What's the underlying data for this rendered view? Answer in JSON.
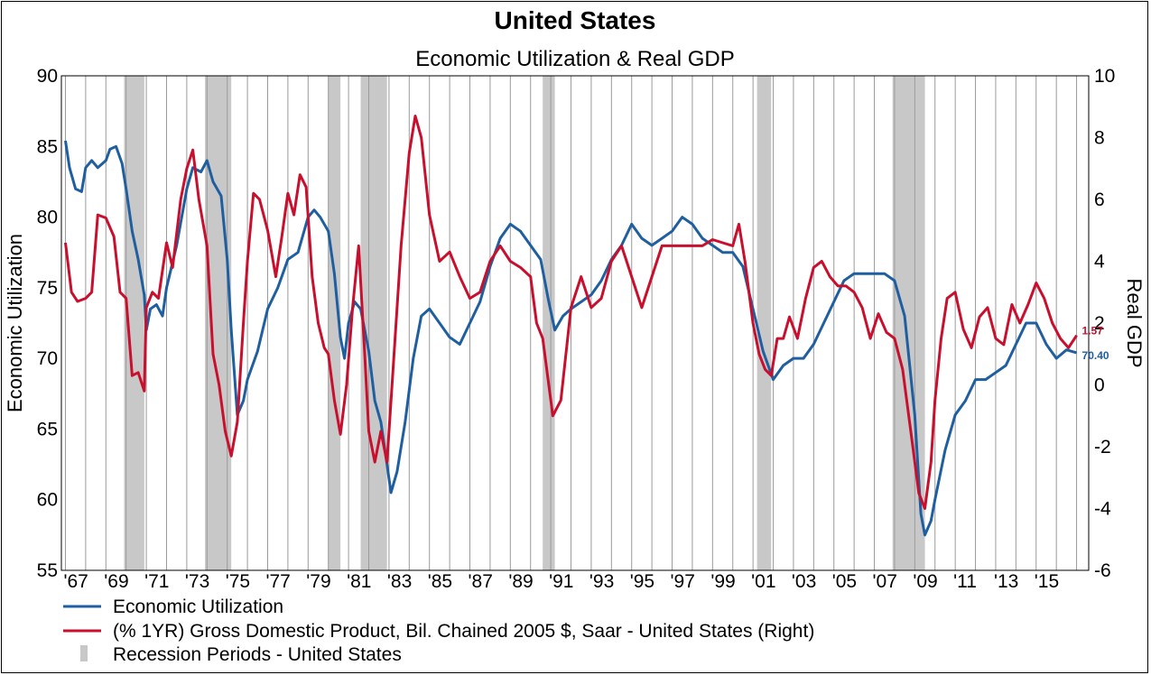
{
  "chart_data": {
    "type": "line",
    "title": "United States",
    "subtitle": "Economic Utilization & Real GDP",
    "ylabel": "Economic Utilization",
    "ylabel_right": "Real GDP",
    "ylim": [
      55,
      90
    ],
    "ylim_right": [
      -6,
      10
    ],
    "xlim": [
      1966.8,
      2017.6
    ],
    "yticks": [
      "90",
      "85",
      "80",
      "75",
      "70",
      "65",
      "60",
      "55"
    ],
    "yticks_right": [
      "10",
      "8",
      "6",
      "4",
      "2",
      "0",
      "-2",
      "-4",
      "-6"
    ],
    "xticks": [
      "'67",
      "'69",
      "'71",
      "'73",
      "'75",
      "'77",
      "'79",
      "'81",
      "'83",
      "'85",
      "'87",
      "'89",
      "'91",
      "'93",
      "'95",
      "'97",
      "'99",
      "'01",
      "'03",
      "'05",
      "'07",
      "'09",
      "'11",
      "'13",
      "'15"
    ],
    "grid": "vertical",
    "legend_position": "bottom",
    "recessions": [
      [
        1969.9,
        1970.9
      ],
      [
        1973.9,
        1975.2
      ],
      [
        1980.0,
        1980.6
      ],
      [
        1981.6,
        1982.9
      ],
      [
        1990.6,
        1991.2
      ],
      [
        2001.2,
        2001.9
      ],
      [
        2007.9,
        2009.5
      ]
    ],
    "series": [
      {
        "name": "Economic Utilization",
        "color": "#1f5fa0",
        "axis": "left",
        "end_label": "70.40",
        "points": [
          [
            1967.0,
            85.4
          ],
          [
            1967.2,
            83.5
          ],
          [
            1967.5,
            82.0
          ],
          [
            1967.8,
            81.8
          ],
          [
            1968.0,
            83.5
          ],
          [
            1968.3,
            84.0
          ],
          [
            1968.6,
            83.5
          ],
          [
            1969.0,
            84.0
          ],
          [
            1969.2,
            84.8
          ],
          [
            1969.5,
            85.0
          ],
          [
            1969.8,
            83.8
          ],
          [
            1970.0,
            82.0
          ],
          [
            1970.3,
            79.0
          ],
          [
            1970.6,
            77.0
          ],
          [
            1970.9,
            74.5
          ],
          [
            1971.0,
            72.0
          ],
          [
            1971.2,
            73.5
          ],
          [
            1971.5,
            73.8
          ],
          [
            1971.8,
            73.0
          ],
          [
            1972.0,
            75.0
          ],
          [
            1972.5,
            78.0
          ],
          [
            1973.0,
            82.0
          ],
          [
            1973.3,
            83.5
          ],
          [
            1973.7,
            83.2
          ],
          [
            1974.0,
            84.0
          ],
          [
            1974.3,
            82.5
          ],
          [
            1974.7,
            81.5
          ],
          [
            1975.0,
            77.0
          ],
          [
            1975.2,
            72.0
          ],
          [
            1975.5,
            66.0
          ],
          [
            1975.8,
            67.0
          ],
          [
            1976.0,
            68.5
          ],
          [
            1976.5,
            70.5
          ],
          [
            1977.0,
            73.5
          ],
          [
            1977.5,
            75.0
          ],
          [
            1978.0,
            77.0
          ],
          [
            1978.5,
            77.5
          ],
          [
            1979.0,
            80.0
          ],
          [
            1979.3,
            80.5
          ],
          [
            1979.6,
            80.0
          ],
          [
            1980.0,
            79.0
          ],
          [
            1980.3,
            76.0
          ],
          [
            1980.6,
            71.5
          ],
          [
            1980.8,
            70.0
          ],
          [
            1981.0,
            72.5
          ],
          [
            1981.3,
            74.0
          ],
          [
            1981.6,
            73.5
          ],
          [
            1982.0,
            70.5
          ],
          [
            1982.3,
            67.0
          ],
          [
            1982.6,
            65.5
          ],
          [
            1982.9,
            62.5
          ],
          [
            1983.1,
            60.5
          ],
          [
            1983.4,
            62.0
          ],
          [
            1983.8,
            65.5
          ],
          [
            1984.2,
            70.0
          ],
          [
            1984.6,
            73.0
          ],
          [
            1985.0,
            73.5
          ],
          [
            1985.5,
            72.5
          ],
          [
            1986.0,
            71.5
          ],
          [
            1986.5,
            71.0
          ],
          [
            1987.0,
            72.5
          ],
          [
            1987.5,
            74.0
          ],
          [
            1988.0,
            76.5
          ],
          [
            1988.5,
            78.5
          ],
          [
            1989.0,
            79.5
          ],
          [
            1989.5,
            79.0
          ],
          [
            1990.0,
            78.0
          ],
          [
            1990.5,
            77.0
          ],
          [
            1990.9,
            74.0
          ],
          [
            1991.2,
            72.0
          ],
          [
            1991.6,
            73.0
          ],
          [
            1992.0,
            73.5
          ],
          [
            1992.5,
            74.0
          ],
          [
            1993.0,
            74.5
          ],
          [
            1993.5,
            75.5
          ],
          [
            1994.0,
            77.0
          ],
          [
            1994.5,
            78.0
          ],
          [
            1995.0,
            79.5
          ],
          [
            1995.5,
            78.5
          ],
          [
            1996.0,
            78.0
          ],
          [
            1996.5,
            78.5
          ],
          [
            1997.0,
            79.0
          ],
          [
            1997.5,
            80.0
          ],
          [
            1998.0,
            79.5
          ],
          [
            1998.5,
            78.5
          ],
          [
            1999.0,
            78.0
          ],
          [
            1999.5,
            77.5
          ],
          [
            2000.0,
            77.5
          ],
          [
            2000.5,
            76.5
          ],
          [
            2001.0,
            73.5
          ],
          [
            2001.5,
            70.5
          ],
          [
            2002.0,
            68.5
          ],
          [
            2002.5,
            69.5
          ],
          [
            2003.0,
            70.0
          ],
          [
            2003.5,
            70.0
          ],
          [
            2004.0,
            71.0
          ],
          [
            2004.5,
            72.5
          ],
          [
            2005.0,
            74.0
          ],
          [
            2005.5,
            75.5
          ],
          [
            2006.0,
            76.0
          ],
          [
            2006.5,
            76.0
          ],
          [
            2007.0,
            76.0
          ],
          [
            2007.5,
            76.0
          ],
          [
            2008.0,
            75.5
          ],
          [
            2008.5,
            73.0
          ],
          [
            2009.0,
            66.0
          ],
          [
            2009.3,
            59.0
          ],
          [
            2009.5,
            57.5
          ],
          [
            2009.8,
            58.5
          ],
          [
            2010.0,
            60.0
          ],
          [
            2010.5,
            63.5
          ],
          [
            2011.0,
            66.0
          ],
          [
            2011.5,
            67.0
          ],
          [
            2012.0,
            68.5
          ],
          [
            2012.5,
            68.5
          ],
          [
            2013.0,
            69.0
          ],
          [
            2013.5,
            69.5
          ],
          [
            2014.0,
            71.0
          ],
          [
            2014.5,
            72.5
          ],
          [
            2015.0,
            72.5
          ],
          [
            2015.5,
            71.0
          ],
          [
            2016.0,
            70.0
          ],
          [
            2016.5,
            70.6
          ],
          [
            2017.0,
            70.4
          ]
        ]
      },
      {
        "name": "(% 1YR) Gross Domestic Product, Bil. Chained 2005 $, Saar - United States  (Right)",
        "color": "#c8102e",
        "axis": "right",
        "end_label": "1.57",
        "points": [
          [
            1967.0,
            4.6
          ],
          [
            1967.3,
            3.0
          ],
          [
            1967.6,
            2.7
          ],
          [
            1968.0,
            2.8
          ],
          [
            1968.3,
            3.0
          ],
          [
            1968.6,
            5.5
          ],
          [
            1969.0,
            5.4
          ],
          [
            1969.4,
            4.8
          ],
          [
            1969.7,
            3.0
          ],
          [
            1970.0,
            2.8
          ],
          [
            1970.3,
            0.3
          ],
          [
            1970.6,
            0.4
          ],
          [
            1970.9,
            -0.2
          ],
          [
            1971.0,
            2.5
          ],
          [
            1971.3,
            3.0
          ],
          [
            1971.6,
            2.8
          ],
          [
            1972.0,
            4.6
          ],
          [
            1972.3,
            3.8
          ],
          [
            1972.7,
            6.0
          ],
          [
            1973.0,
            7.0
          ],
          [
            1973.3,
            7.6
          ],
          [
            1973.6,
            6.0
          ],
          [
            1974.0,
            4.5
          ],
          [
            1974.3,
            1.0
          ],
          [
            1974.6,
            0.0
          ],
          [
            1974.9,
            -1.5
          ],
          [
            1975.2,
            -2.3
          ],
          [
            1975.5,
            -1.2
          ],
          [
            1975.8,
            2.0
          ],
          [
            1976.0,
            4.0
          ],
          [
            1976.3,
            6.2
          ],
          [
            1976.6,
            6.0
          ],
          [
            1977.0,
            5.0
          ],
          [
            1977.4,
            3.5
          ],
          [
            1977.7,
            4.8
          ],
          [
            1978.0,
            6.2
          ],
          [
            1978.3,
            5.5
          ],
          [
            1978.6,
            6.8
          ],
          [
            1978.9,
            6.4
          ],
          [
            1979.2,
            3.5
          ],
          [
            1979.5,
            2.0
          ],
          [
            1979.8,
            1.2
          ],
          [
            1980.0,
            1.0
          ],
          [
            1980.3,
            -0.5
          ],
          [
            1980.6,
            -1.6
          ],
          [
            1980.9,
            0.0
          ],
          [
            1981.2,
            2.5
          ],
          [
            1981.5,
            4.5
          ],
          [
            1981.8,
            1.0
          ],
          [
            1982.0,
            -1.5
          ],
          [
            1982.3,
            -2.5
          ],
          [
            1982.6,
            -1.5
          ],
          [
            1982.9,
            -2.5
          ],
          [
            1983.2,
            0.5
          ],
          [
            1983.6,
            4.5
          ],
          [
            1984.0,
            7.5
          ],
          [
            1984.3,
            8.7
          ],
          [
            1984.6,
            8.0
          ],
          [
            1985.0,
            5.5
          ],
          [
            1985.5,
            4.0
          ],
          [
            1986.0,
            4.3
          ],
          [
            1986.5,
            3.5
          ],
          [
            1987.0,
            2.8
          ],
          [
            1987.5,
            3.0
          ],
          [
            1988.0,
            4.0
          ],
          [
            1988.5,
            4.5
          ],
          [
            1989.0,
            4.0
          ],
          [
            1989.5,
            3.8
          ],
          [
            1990.0,
            3.5
          ],
          [
            1990.3,
            2.0
          ],
          [
            1990.6,
            1.5
          ],
          [
            1990.9,
            0.0
          ],
          [
            1991.1,
            -1.0
          ],
          [
            1991.5,
            -0.5
          ],
          [
            1992.0,
            2.5
          ],
          [
            1992.5,
            3.5
          ],
          [
            1993.0,
            2.5
          ],
          [
            1993.5,
            2.8
          ],
          [
            1994.0,
            4.0
          ],
          [
            1994.5,
            4.5
          ],
          [
            1995.0,
            3.5
          ],
          [
            1995.5,
            2.5
          ],
          [
            1996.0,
            3.5
          ],
          [
            1996.5,
            4.5
          ],
          [
            1997.0,
            4.5
          ],
          [
            1997.5,
            4.5
          ],
          [
            1998.0,
            4.5
          ],
          [
            1998.5,
            4.5
          ],
          [
            1999.0,
            4.7
          ],
          [
            1999.5,
            4.6
          ],
          [
            2000.0,
            4.5
          ],
          [
            2000.3,
            5.2
          ],
          [
            2000.6,
            4.0
          ],
          [
            2001.0,
            2.0
          ],
          [
            2001.3,
            1.0
          ],
          [
            2001.6,
            0.5
          ],
          [
            2001.9,
            0.3
          ],
          [
            2002.2,
            1.5
          ],
          [
            2002.5,
            1.5
          ],
          [
            2002.8,
            2.2
          ],
          [
            2003.2,
            1.5
          ],
          [
            2003.6,
            2.8
          ],
          [
            2004.0,
            3.8
          ],
          [
            2004.4,
            4.0
          ],
          [
            2004.8,
            3.5
          ],
          [
            2005.2,
            3.2
          ],
          [
            2005.6,
            3.2
          ],
          [
            2006.0,
            3.0
          ],
          [
            2006.4,
            2.5
          ],
          [
            2006.8,
            1.5
          ],
          [
            2007.2,
            2.3
          ],
          [
            2007.6,
            1.7
          ],
          [
            2008.0,
            1.5
          ],
          [
            2008.4,
            0.5
          ],
          [
            2008.8,
            -1.5
          ],
          [
            2009.2,
            -3.5
          ],
          [
            2009.5,
            -4.0
          ],
          [
            2009.8,
            -2.5
          ],
          [
            2010.0,
            -0.5
          ],
          [
            2010.3,
            1.5
          ],
          [
            2010.6,
            2.8
          ],
          [
            2011.0,
            3.0
          ],
          [
            2011.4,
            1.8
          ],
          [
            2011.8,
            1.2
          ],
          [
            2012.2,
            2.2
          ],
          [
            2012.6,
            2.5
          ],
          [
            2013.0,
            1.5
          ],
          [
            2013.4,
            1.3
          ],
          [
            2013.8,
            2.6
          ],
          [
            2014.2,
            2.0
          ],
          [
            2014.6,
            2.6
          ],
          [
            2015.0,
            3.3
          ],
          [
            2015.4,
            2.8
          ],
          [
            2015.8,
            2.0
          ],
          [
            2016.2,
            1.5
          ],
          [
            2016.6,
            1.2
          ],
          [
            2017.0,
            1.6
          ]
        ]
      }
    ],
    "legend": [
      {
        "label": "Economic Utilization",
        "color": "#1f5fa0",
        "kind": "line"
      },
      {
        "label": "(% 1YR) Gross Domestic Product, Bil. Chained 2005 $, Saar - United States  (Right)",
        "color": "#c8102e",
        "kind": "line"
      },
      {
        "label": "Recession Periods - United States",
        "color": "#c8c8c8",
        "kind": "bar"
      }
    ]
  }
}
